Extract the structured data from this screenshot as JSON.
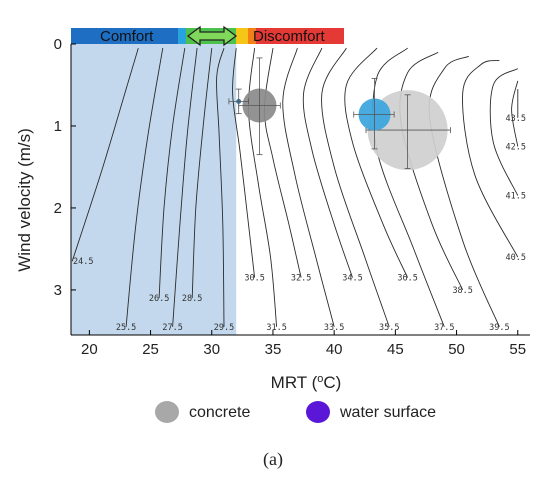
{
  "chart_data": {
    "type": "contour",
    "xlabel": "MRT (",
    "xlabel_unit_sup": "o",
    "xlabel_tail": "C)",
    "ylabel": "Wind velocity (m/s)",
    "xlim": [
      18.5,
      56
    ],
    "ylim": [
      0,
      3.55
    ],
    "x_ticks": [
      20,
      25,
      30,
      35,
      40,
      45,
      50,
      55
    ],
    "y_ticks": [
      0,
      1,
      2,
      3
    ],
    "comfort_region": {
      "x_max": 32,
      "color": "#c3d8ec"
    },
    "band": {
      "comfort_label": "Comfort",
      "discomfort_label": "Discomfort",
      "arrow_symbol": "⟺",
      "colors": [
        "#1e6fc4",
        "#29a3e0",
        "#4cc24c",
        "#f5c518",
        "#f57f17",
        "#e53935"
      ]
    },
    "contours": [
      {
        "label": "24.5",
        "points": [
          [
            18.6,
            2.65
          ],
          [
            21.0,
            1.55
          ],
          [
            23.0,
            0.55
          ],
          [
            24.0,
            0.05
          ]
        ]
      },
      {
        "label": "25.5",
        "points": [
          [
            23.0,
            3.45
          ],
          [
            23.8,
            2.2
          ],
          [
            24.8,
            1.1
          ],
          [
            26.0,
            0.05
          ]
        ]
      },
      {
        "label": "26.5",
        "points": [
          [
            25.7,
            3.1
          ],
          [
            26.1,
            2.0
          ],
          [
            26.8,
            1.0
          ],
          [
            27.8,
            0.05
          ]
        ]
      },
      {
        "label": "27.5",
        "points": [
          [
            26.8,
            3.45
          ],
          [
            27.4,
            2.2
          ],
          [
            28.0,
            1.1
          ],
          [
            28.8,
            0.05
          ]
        ]
      },
      {
        "label": "28.5",
        "points": [
          [
            28.4,
            3.1
          ],
          [
            28.7,
            2.0
          ],
          [
            29.3,
            1.0
          ],
          [
            30.0,
            0.05
          ]
        ]
      },
      {
        "label": "29.5",
        "points": [
          [
            31.0,
            3.45
          ],
          [
            30.9,
            2.2
          ],
          [
            30.6,
            1.1
          ],
          [
            30.4,
            0.4
          ],
          [
            31.0,
            0.05
          ]
        ]
      },
      {
        "label": "30.5",
        "points": [
          [
            33.5,
            2.85
          ],
          [
            33.0,
            2.2
          ],
          [
            32.3,
            1.3
          ],
          [
            31.7,
            0.6
          ],
          [
            32.0,
            0.05
          ]
        ]
      },
      {
        "label": "31.5",
        "points": [
          [
            35.3,
            3.45
          ],
          [
            34.8,
            2.6
          ],
          [
            33.8,
            1.7
          ],
          [
            33.0,
            0.8
          ],
          [
            33.5,
            0.05
          ]
        ]
      },
      {
        "label": "32.5",
        "points": [
          [
            37.3,
            2.85
          ],
          [
            36.3,
            2.2
          ],
          [
            35.0,
            1.4
          ],
          [
            34.3,
            0.8
          ],
          [
            35.0,
            0.05
          ]
        ]
      },
      {
        "label": "33.5",
        "points": [
          [
            40.0,
            3.45
          ],
          [
            38.5,
            2.6
          ],
          [
            36.8,
            1.6
          ],
          [
            35.8,
            0.7
          ],
          [
            37.0,
            0.05
          ]
        ]
      },
      {
        "label": "34.5",
        "points": [
          [
            41.5,
            2.85
          ],
          [
            40.0,
            2.2
          ],
          [
            38.2,
            1.3
          ],
          [
            37.5,
            0.6
          ],
          [
            39.0,
            0.05
          ]
        ]
      },
      {
        "label": "35.5",
        "points": [
          [
            44.5,
            3.45
          ],
          [
            42.5,
            2.6
          ],
          [
            40.0,
            1.5
          ],
          [
            39.0,
            0.6
          ],
          [
            41.0,
            0.05
          ]
        ]
      },
      {
        "label": "36.5",
        "points": [
          [
            46.0,
            2.85
          ],
          [
            44.0,
            2.2
          ],
          [
            41.5,
            1.2
          ],
          [
            41.0,
            0.5
          ],
          [
            43.5,
            0.05
          ]
        ]
      },
      {
        "label": "37.5",
        "points": [
          [
            49.0,
            3.45
          ],
          [
            46.5,
            2.5
          ],
          [
            43.5,
            1.3
          ],
          [
            43.5,
            0.4
          ],
          [
            46.0,
            0.05
          ]
        ]
      },
      {
        "label": "38.5",
        "points": [
          [
            50.5,
            3.0
          ],
          [
            48.0,
            2.2
          ],
          [
            45.5,
            1.0
          ],
          [
            46.0,
            0.35
          ],
          [
            48.5,
            0.1
          ]
        ]
      },
      {
        "label": "39.5",
        "points": [
          [
            53.5,
            3.45
          ],
          [
            50.5,
            2.4
          ],
          [
            47.8,
            0.9
          ],
          [
            49.0,
            0.3
          ],
          [
            51.0,
            0.15
          ]
        ]
      },
      {
        "label": "40.5",
        "points": [
          [
            55.0,
            2.6
          ],
          [
            51.5,
            1.6
          ],
          [
            50.5,
            0.6
          ],
          [
            52.0,
            0.25
          ],
          [
            53.5,
            0.2
          ]
        ]
      },
      {
        "label": "41.5",
        "points": [
          [
            55.0,
            1.85
          ],
          [
            53.0,
            1.2
          ],
          [
            53.0,
            0.5
          ],
          [
            55.0,
            0.3
          ]
        ]
      },
      {
        "label": "42.5",
        "points": [
          [
            55.0,
            1.25
          ],
          [
            54.5,
            0.8
          ],
          [
            55.0,
            0.45
          ]
        ]
      },
      {
        "label": "43.5",
        "points": [
          [
            55.0,
            0.9
          ],
          [
            55.0,
            0.55
          ]
        ]
      }
    ],
    "markers": [
      {
        "series": "concrete",
        "x": 33.9,
        "y": 0.75,
        "r_px": 17,
        "color": "#8a8a8a",
        "err_x": [
          32.2,
          35.6
        ],
        "err_y": [
          0.17,
          1.35
        ]
      },
      {
        "series": "concrete",
        "x": 46.0,
        "y": 1.05,
        "r_px": 40,
        "color": "#cfcfcf",
        "err_x": [
          42.6,
          49.5
        ],
        "err_y": [
          0.62,
          1.52
        ]
      },
      {
        "series": "water surface",
        "x": 43.3,
        "y": 0.86,
        "r_px": 16,
        "color": "#3aa4dc",
        "err_x": [
          41.6,
          44.9
        ],
        "err_y": [
          0.42,
          1.28
        ]
      },
      {
        "series": "water surface",
        "x": 32.2,
        "y": 0.7,
        "r_px": 2.5,
        "color": "#2a6fa0",
        "err_x": [
          31.4,
          33.0
        ],
        "err_y": [
          0.55,
          0.85
        ]
      }
    ],
    "legend": [
      {
        "name": "concrete",
        "color": "#a8a8a8"
      },
      {
        "name": "water surface",
        "color": "#5b17d8"
      }
    ],
    "caption": "(a)"
  }
}
